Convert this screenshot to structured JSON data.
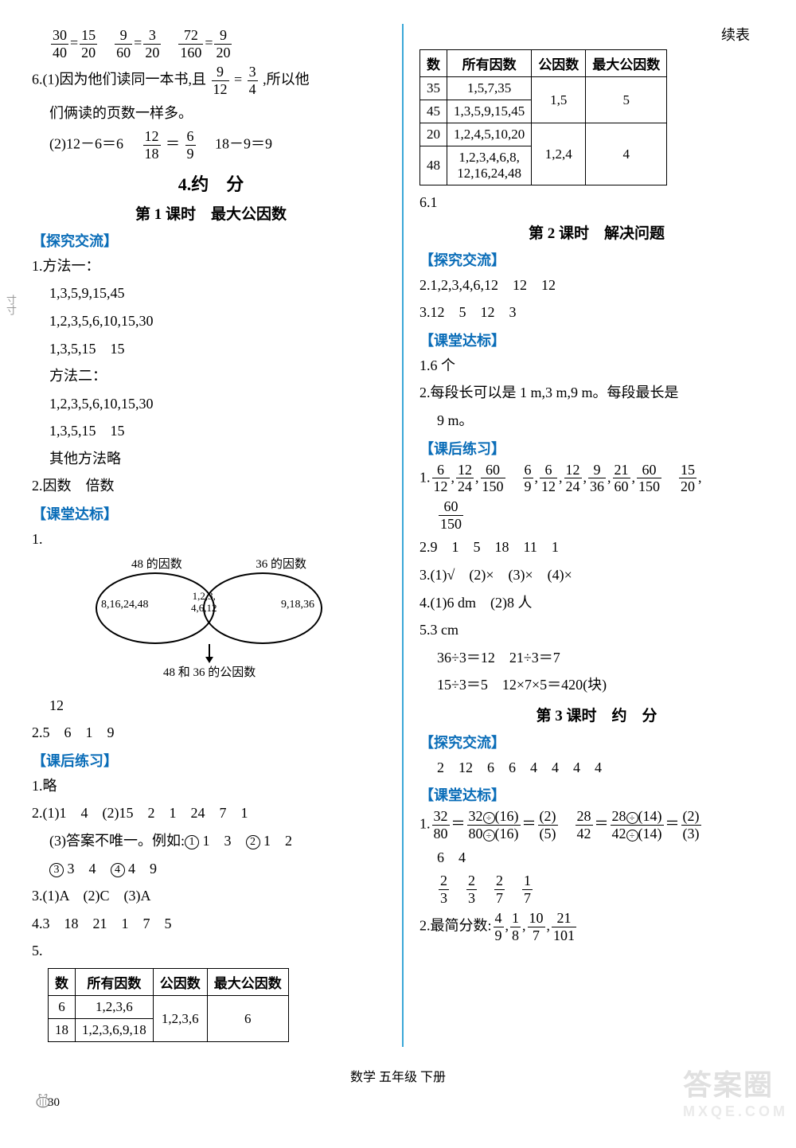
{
  "pageWidth": 1000,
  "pageHeight": 1442,
  "footer": "数学 五年级 下册",
  "pageNumber": "30",
  "watermark": {
    "main": "答案圈",
    "sub": "MXQE.COM"
  },
  "colors": {
    "bracketLabel": "#0a6db8",
    "divider": "#3aa7d8",
    "text": "#000000",
    "background": "#ffffff"
  },
  "left": {
    "topFractions": [
      {
        "n": "30",
        "d": "40"
      },
      {
        "op": "="
      },
      {
        "n": "15",
        "d": "20"
      },
      {
        "sp": true
      },
      {
        "n": "9",
        "d": "60"
      },
      {
        "op": "="
      },
      {
        "n": "3",
        "d": "20"
      },
      {
        "sp": true
      },
      {
        "n": "72",
        "d": "160"
      },
      {
        "op": "="
      },
      {
        "n": "9",
        "d": "20"
      }
    ],
    "item6": {
      "l1_before": "6.(1)因为他们读同一本书,且",
      "l1_frac1": {
        "n": "9",
        "d": "12"
      },
      "l1_mid": "=",
      "l1_frac2": {
        "n": "3",
        "d": "4"
      },
      "l1_after": ",所以他",
      "l2": "们俩读的页数一样多。",
      "l3_before": "(2)12－6＝6　",
      "l3_frac1": {
        "n": "12",
        "d": "18"
      },
      "l3_mid": "＝",
      "l3_frac2": {
        "n": "6",
        "d": "9"
      },
      "l3_after": "　18－9＝9"
    },
    "sectionTitle": "4.约　分",
    "lesson1Title": "第 1 课时　最大公因数",
    "labels": {
      "explore": "【探究交流】",
      "classStd": "【课堂达标】",
      "afterClass": "【课后练习】"
    },
    "explore": {
      "m1label": "1.方法一：",
      "m1rows": [
        "1,3,5,9,15,45",
        "1,2,3,5,6,10,15,30",
        "1,3,5,15　15"
      ],
      "m2label": "方法二：",
      "m2rows": [
        "1,2,3,5,6,10,15,30",
        "1,3,5,15　15"
      ],
      "otherLabel": "其他方法略",
      "item2": "2.因数　倍数"
    },
    "classStd": {
      "item1label": "1.",
      "venn": {
        "topLeft": "48 的因数",
        "topRight": "36 的因数",
        "left": "8,16,24,48",
        "mid": "1,2,3,\n4,6,12",
        "right": "9,18,36",
        "bottom": "48 和 36 的公因数"
      },
      "item1ans": "12",
      "item2": "2.5　6　1　9"
    },
    "afterClass": {
      "item1": "1.略",
      "item2_l1": "2.(1)1　4　(2)15　2　1　24　7　1",
      "item2_l2_pre": "(3)答案不唯一。例如:",
      "item2_l2_parts": [
        {
          "circ": "①"
        },
        {
          "t": " 1　3　"
        },
        {
          "circ": "②"
        },
        {
          "t": " 1　2"
        }
      ],
      "item2_l3_parts": [
        {
          "circ": "③"
        },
        {
          "t": " 3　4　"
        },
        {
          "circ": "④"
        },
        {
          "t": " 4　9"
        }
      ],
      "item3": "3.(1)A　(2)C　(3)A",
      "item4": "4.3　18　21　1　7　5",
      "item5label": "5.",
      "table5": {
        "headers": [
          "数",
          "所有因数",
          "公因数",
          "最大公因数"
        ],
        "rows": [
          [
            "6",
            "1,2,3,6",
            {
              "span": 2,
              "val": "1,2,3,6"
            },
            {
              "span": 2,
              "val": "6"
            }
          ],
          [
            "18",
            "1,2,3,6,9,18",
            null,
            null
          ]
        ]
      }
    }
  },
  "right": {
    "contLabel": "续表",
    "contTable": {
      "headers": [
        "数",
        "所有因数",
        "公因数",
        "最大公因数"
      ],
      "rows": [
        [
          "35",
          "1,5,7,35",
          {
            "span": 2,
            "val": "1,5"
          },
          {
            "span": 2,
            "val": "5"
          }
        ],
        [
          "45",
          "1,3,5,9,15,45",
          null,
          null
        ],
        [
          "20",
          "1,2,4,5,10,20",
          {
            "span": 2,
            "val": "1,2,4"
          },
          {
            "span": 2,
            "val": "4"
          }
        ],
        [
          "48",
          "1,2,3,4,6,8,\n12,16,24,48",
          null,
          null
        ]
      ]
    },
    "item6_1": "6.1",
    "lesson2Title": "第 2 课时　解决问题",
    "labels": {
      "explore": "【探究交流】",
      "classStd": "【课堂达标】",
      "afterClass": "【课后练习】"
    },
    "explore2": {
      "l1": "2.1,2,3,4,6,12　12　12",
      "l2": "3.12　5　12　3"
    },
    "classStd2": {
      "l1": "1.6 个",
      "l2": "2.每段长可以是 1 m,3 m,9 m。每段最长是",
      "l2b": "9 m。"
    },
    "afterClass2": {
      "item1_row": [
        "1.",
        {
          "n": "6",
          "d": "12"
        },
        ",",
        {
          "n": "12",
          "d": "24"
        },
        ",",
        {
          "n": "60",
          "d": "150"
        },
        "　",
        {
          "n": "6",
          "d": "9"
        },
        ",",
        {
          "n": "6",
          "d": "12"
        },
        ",",
        {
          "n": "12",
          "d": "24"
        },
        ",",
        {
          "n": "9",
          "d": "36"
        },
        ",",
        {
          "n": "21",
          "d": "60"
        },
        ",",
        {
          "n": "60",
          "d": "150"
        },
        "　",
        {
          "n": "15",
          "d": "20"
        },
        ","
      ],
      "item1_row2": [
        {
          "n": "60",
          "d": "150"
        }
      ],
      "item2": "2.9　1　5　18　11　1",
      "item3": "3.(1)√　(2)×　(3)×　(4)×",
      "item4": "4.(1)6 dm　(2)8 人",
      "item5_l1": "5.3 cm",
      "item5_l2": "36÷3＝12　21÷3＝7",
      "item5_l3": "15÷3＝5　12×7×5＝420(块)"
    },
    "lesson3Title": "第 3 课时　约　分",
    "explore3": {
      "l1": "2　12　6　6　4　4　4　4"
    },
    "classStd3": {
      "item1_parts": [
        "1.",
        {
          "n": "32",
          "d": "80"
        },
        "＝",
        {
          "nComplex": [
            "32",
            "÷",
            "(16)"
          ],
          "dComplex": [
            "80",
            "÷",
            "(16)"
          ]
        },
        "＝",
        {
          "n": "(2)",
          "d": "(5)"
        },
        "　",
        {
          "n": "28",
          "d": "42"
        },
        "＝",
        {
          "nComplex": [
            "28",
            "÷",
            "(14)"
          ],
          "dComplex": [
            "42",
            "÷",
            "(14)"
          ]
        },
        "＝",
        {
          "n": "(2)",
          "d": "(3)"
        }
      ],
      "item1_l2": "6　4",
      "item1_l3": [
        {
          "n": "2",
          "d": "3"
        },
        "　",
        {
          "n": "2",
          "d": "3"
        },
        "　",
        {
          "n": "2",
          "d": "7"
        },
        "　",
        {
          "n": "1",
          "d": "7"
        }
      ],
      "item2_pre": "2.最简分数:",
      "item2_fracs": [
        {
          "n": "4",
          "d": "9"
        },
        ",",
        {
          "n": "1",
          "d": "8"
        },
        ",",
        {
          "n": "10",
          "d": "7"
        },
        ",",
        {
          "n": "21",
          "d": "101"
        }
      ]
    }
  }
}
